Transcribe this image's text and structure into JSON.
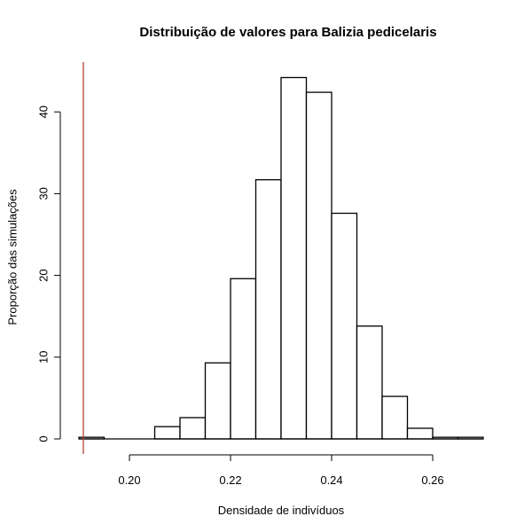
{
  "chart_data": {
    "type": "bar",
    "subtype": "histogram",
    "title": "Distribuição de valores para Balizia pedicelaris",
    "xlabel": "Densidade de indivíduos",
    "ylabel": "Proporção das simulações",
    "bin_width": 0.005,
    "bin_edges": [
      0.19,
      0.195,
      0.2,
      0.205,
      0.21,
      0.215,
      0.22,
      0.225,
      0.23,
      0.235,
      0.24,
      0.245,
      0.25,
      0.255,
      0.26,
      0.265,
      0.27
    ],
    "categories": [
      "0.190-0.195",
      "0.195-0.200",
      "0.200-0.205",
      "0.205-0.210",
      "0.210-0.215",
      "0.215-0.220",
      "0.220-0.225",
      "0.225-0.230",
      "0.230-0.235",
      "0.235-0.240",
      "0.240-0.245",
      "0.245-0.250",
      "0.250-0.255",
      "0.255-0.260",
      "0.260-0.265",
      "0.265-0.270"
    ],
    "values": [
      0.2,
      0,
      0,
      1.5,
      2.6,
      9.3,
      19.6,
      31.7,
      44.2,
      42.4,
      27.6,
      13.8,
      5.2,
      1.3,
      0.2,
      0.2
    ],
    "x_ticks": [
      "0.20",
      "0.22",
      "0.24",
      "0.26"
    ],
    "x_tick_values": [
      0.2,
      0.22,
      0.24,
      0.26
    ],
    "y_ticks": [
      "0",
      "10",
      "20",
      "30",
      "40"
    ],
    "y_tick_values": [
      0,
      10,
      20,
      30,
      40
    ],
    "xlim": [
      0.19,
      0.27
    ],
    "ylim": [
      0,
      46
    ],
    "grid": false,
    "legend": null,
    "annotations": [
      {
        "type": "vertical_line",
        "x": 0.191,
        "color": "#b5413a",
        "description": "observed value reference line"
      }
    ]
  },
  "colors": {
    "bar_fill": "#ffffff",
    "bar_stroke": "#000000",
    "axis": "#000000",
    "reference_line": "#b5413a"
  }
}
